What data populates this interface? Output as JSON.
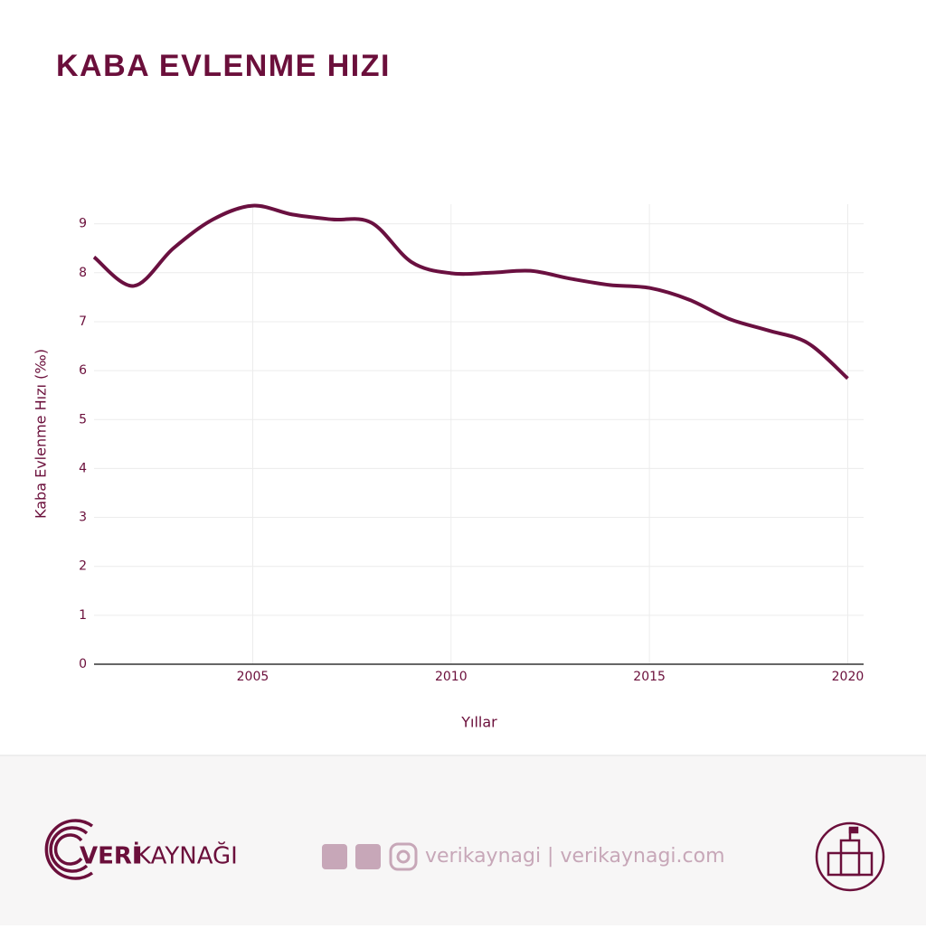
{
  "chart_data": {
    "type": "line",
    "title": "KABA EVLENME HIZI",
    "x_label": "Yıllar",
    "y_label": "Kaba Evlenme Hızı (‰)",
    "x": [
      2001,
      2002,
      2003,
      2004,
      2005,
      2006,
      2007,
      2008,
      2009,
      2010,
      2011,
      2012,
      2013,
      2014,
      2015,
      2016,
      2017,
      2018,
      2019,
      2020
    ],
    "values": [
      8.32,
      7.73,
      8.5,
      9.09,
      9.37,
      9.19,
      9.09,
      9.02,
      8.22,
      7.99,
      8.0,
      8.04,
      7.88,
      7.75,
      7.69,
      7.45,
      7.06,
      6.82,
      6.56,
      5.84
    ],
    "color": "#6a1040",
    "xlim": [
      2001,
      2020.4
    ],
    "xticks": [
      2005,
      2010,
      2015,
      2020
    ],
    "ylim": [
      0,
      9.4
    ],
    "yticks": [
      0,
      1,
      2,
      3,
      4,
      5,
      6,
      7,
      8,
      9
    ],
    "grid": true
  },
  "footer": {
    "logo_bold": "VERİ",
    "logo_light": "KAYNAĞI",
    "social": "verikaynagi | verikaynagi.com"
  }
}
